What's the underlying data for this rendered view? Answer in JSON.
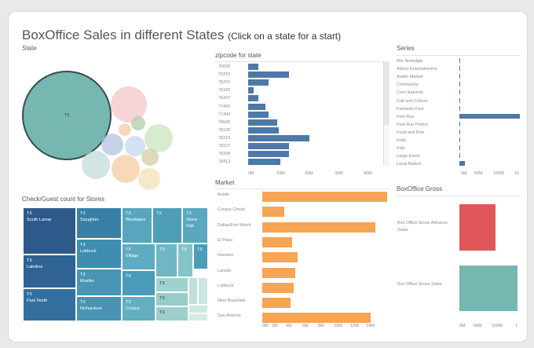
{
  "title": "BoxOffice Sales in different States",
  "subtitle": "(Click on a state for a start)",
  "state": {
    "header": "State",
    "selected": "TX"
  },
  "zip": {
    "header": "zipcode for state",
    "ticks": [
      "0M",
      "10M",
      "20M",
      "30M",
      "40M"
    ],
    "rows": [
      [
        "75039",
        3.5
      ],
      [
        "75215",
        14
      ],
      [
        "75231",
        7
      ],
      [
        "76182",
        2
      ],
      [
        "76207",
        3.5
      ],
      [
        "77460",
        6
      ],
      [
        "77494",
        7
      ],
      [
        "78045",
        10
      ],
      [
        "78130",
        10.5
      ],
      [
        "78216",
        21
      ],
      [
        "78227",
        14
      ],
      [
        "78258",
        14
      ],
      [
        "78413",
        11
      ]
    ],
    "color": "#4e79a7"
  },
  "series": {
    "header": "Series",
    "ticks": [
      "0M",
      "50M",
      "100M",
      "15"
    ],
    "rows": [
      [
        "90s Nostalgia",
        0.3
      ],
      [
        "Alamo Entertainment",
        2.5
      ],
      [
        "Austin Market",
        0.3
      ],
      [
        "Community",
        0.3
      ],
      [
        "Core National",
        0.3
      ],
      [
        "Cult and Culture",
        0.3
      ],
      [
        "Fantastic Fest",
        0.3
      ],
      [
        "First Run",
        150
      ],
      [
        "First Run Promo",
        0.3
      ],
      [
        "Food and Film",
        0.3
      ],
      [
        "Indie",
        0.3
      ],
      [
        "Kids",
        0.3
      ],
      [
        "Large Event",
        0.3
      ],
      [
        "Local Market",
        13
      ]
    ],
    "color": "#4e79a7"
  },
  "market": {
    "header": "Market",
    "ticks": [
      "0M",
      "2M",
      "4M",
      "6M",
      "8M",
      "10M",
      "12M",
      "14M"
    ],
    "rows": [
      [
        "Austin",
        15
      ],
      [
        "Corpus Christi",
        2.6
      ],
      [
        "Dallas/Fort Worth",
        13.6
      ],
      [
        "El Paso",
        3.6
      ],
      [
        "Houston",
        4.2
      ],
      [
        "Laredo",
        4
      ],
      [
        "Lubbock",
        3.8
      ],
      [
        "New Braunfels",
        3.4
      ],
      [
        "San Antonio",
        13
      ]
    ],
    "color": "#f5a554"
  },
  "gross": {
    "header": "BoxOffice Gross",
    "ticks": [
      "0M",
      "50M",
      "100M",
      "1"
    ],
    "rows": [
      {
        "label": "Box Office Gross Advance Sales",
        "value": 95,
        "color": "#e05759"
      },
      {
        "label": "Box Office Gross Sales",
        "value": 155,
        "color": "#76b7b2"
      }
    ]
  },
  "treemap": {
    "header": "Check/Guest count for Stores",
    "state": "TX",
    "cells": [
      "South Lamar",
      "Lakeline",
      "Park North",
      "Slaughter",
      "Lubbock",
      "Mueller",
      "Richardson",
      "Westlakes",
      "",
      "Stone Oak",
      "Village",
      "",
      "",
      "",
      "",
      "Corpus",
      "",
      "",
      ""
    ]
  }
}
